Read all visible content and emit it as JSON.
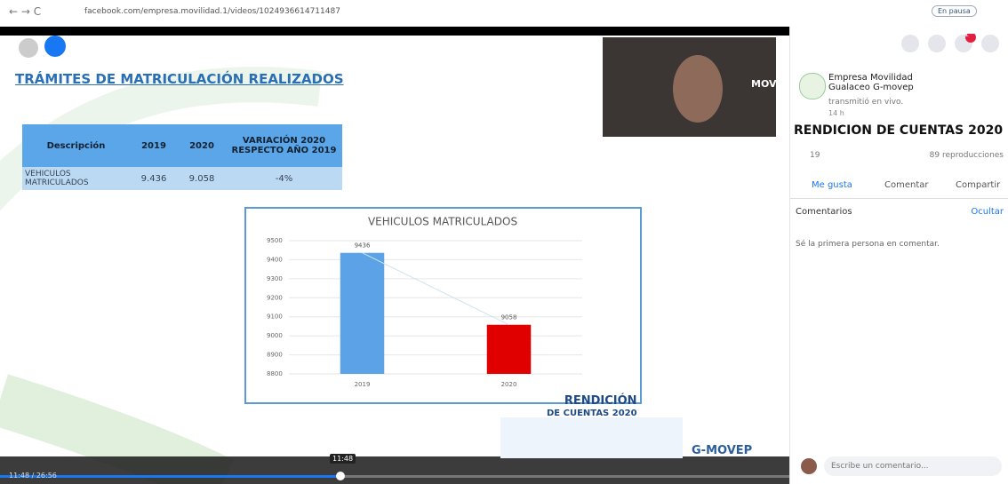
{
  "browser": {
    "url": "facebook.com/empresa.movilidad.1/videos/1024936614711487",
    "profile": "En pausa"
  },
  "slide": {
    "title": "TRÁMITES DE MATRICULACIÓN REALIZADOS",
    "table": {
      "header": [
        "Descripción",
        "2019",
        "2020",
        "VARIACIÓN 2020 RESPECTO AÑO 2019"
      ],
      "rows": [
        [
          "VEHICULOS MATRICULADOS",
          "9.436",
          "9.058",
          "-4%"
        ]
      ]
    },
    "chart": {
      "type": "bar",
      "title": "VEHICULOS MATRICULADOS",
      "categories": [
        "2019",
        "2020"
      ],
      "values": [
        9436,
        9058
      ],
      "colors": [
        "#5ba3e6",
        "#e00000"
      ],
      "ylim": [
        8800,
        9500
      ],
      "yticks": [
        8800,
        8900,
        9000,
        9100,
        9200,
        9300,
        9400,
        9500
      ],
      "grid": true
    },
    "logo": {
      "line1": "RENDICIÓN",
      "line2": "DE CUENTAS 2020",
      "brand": "G-MOVEP"
    },
    "webcam_brand": "MOVEP"
  },
  "player": {
    "tooltip": "11:48",
    "time": "11:48 / 26:56"
  },
  "sidebar": {
    "notifications": "1",
    "page_name": "Empresa Movilidad Gualaceo G-movep",
    "status": "transmitió en vivo.",
    "age": "14 h",
    "video_title": "RENDICION DE CUENTAS 2020",
    "reactions": "19",
    "views": "89 reproducciones",
    "actions": [
      "Me gusta",
      "Comentar",
      "Compartir"
    ],
    "comments_label": "Comentarios",
    "hide": "Ocultar",
    "empty": "Sé la primera persona en comentar.",
    "input": "Escribe un comentario..."
  }
}
